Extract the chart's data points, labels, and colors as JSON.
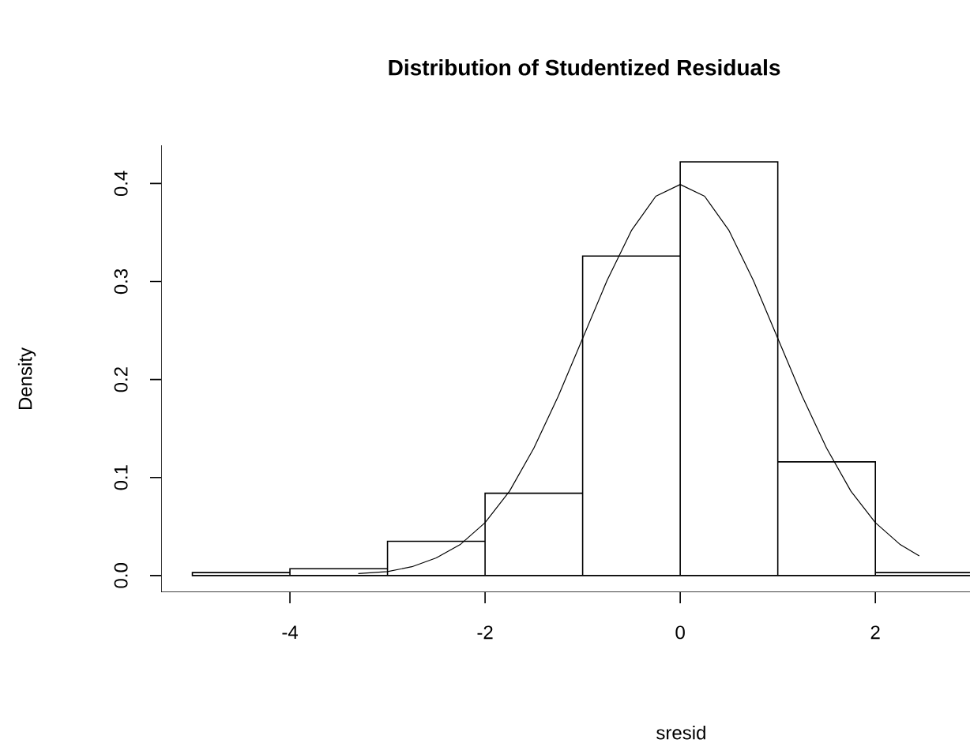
{
  "chart_data": {
    "type": "histogram",
    "title": "Distribution of Studentized Residuals",
    "xlabel": "sresid",
    "ylabel": "Density",
    "bins": [
      -5,
      -4,
      -3,
      -2,
      -1,
      0,
      1,
      2,
      3
    ],
    "values": [
      0.003,
      0.007,
      0.035,
      0.084,
      0.326,
      0.422,
      0.116,
      0.003
    ],
    "color": "#ffffff",
    "series": [
      {
        "type": "line",
        "color": "#000000",
        "x": [
          -3.3,
          -3,
          -2.75,
          -2.5,
          -2.25,
          -2,
          -1.75,
          -1.5,
          -1.25,
          -1,
          -0.75,
          -0.5,
          -0.25,
          0,
          0.25,
          0.5,
          0.75,
          1,
          1.25,
          1.5,
          1.75,
          2,
          2.25,
          2.45
        ],
        "values": [
          0.002,
          0.004,
          0.009,
          0.018,
          0.032,
          0.054,
          0.086,
          0.13,
          0.183,
          0.242,
          0.301,
          0.352,
          0.387,
          0.399,
          0.387,
          0.352,
          0.301,
          0.242,
          0.183,
          0.13,
          0.086,
          0.054,
          0.032,
          0.02
        ]
      }
    ],
    "xlim": [
      -5.32,
      2.97
    ],
    "ylim": [
      -0.017,
      0.439
    ],
    "xticks": [
      -4,
      -2,
      0,
      2
    ],
    "yticks": [
      {
        "value": 0,
        "label": "0.0"
      },
      {
        "value": 0.1,
        "label": "0.1"
      },
      {
        "value": 0.2,
        "label": "0.2"
      },
      {
        "value": 0.3,
        "label": "0.3"
      },
      {
        "value": 0.4,
        "label": "0.4"
      }
    ],
    "grid": false
  }
}
